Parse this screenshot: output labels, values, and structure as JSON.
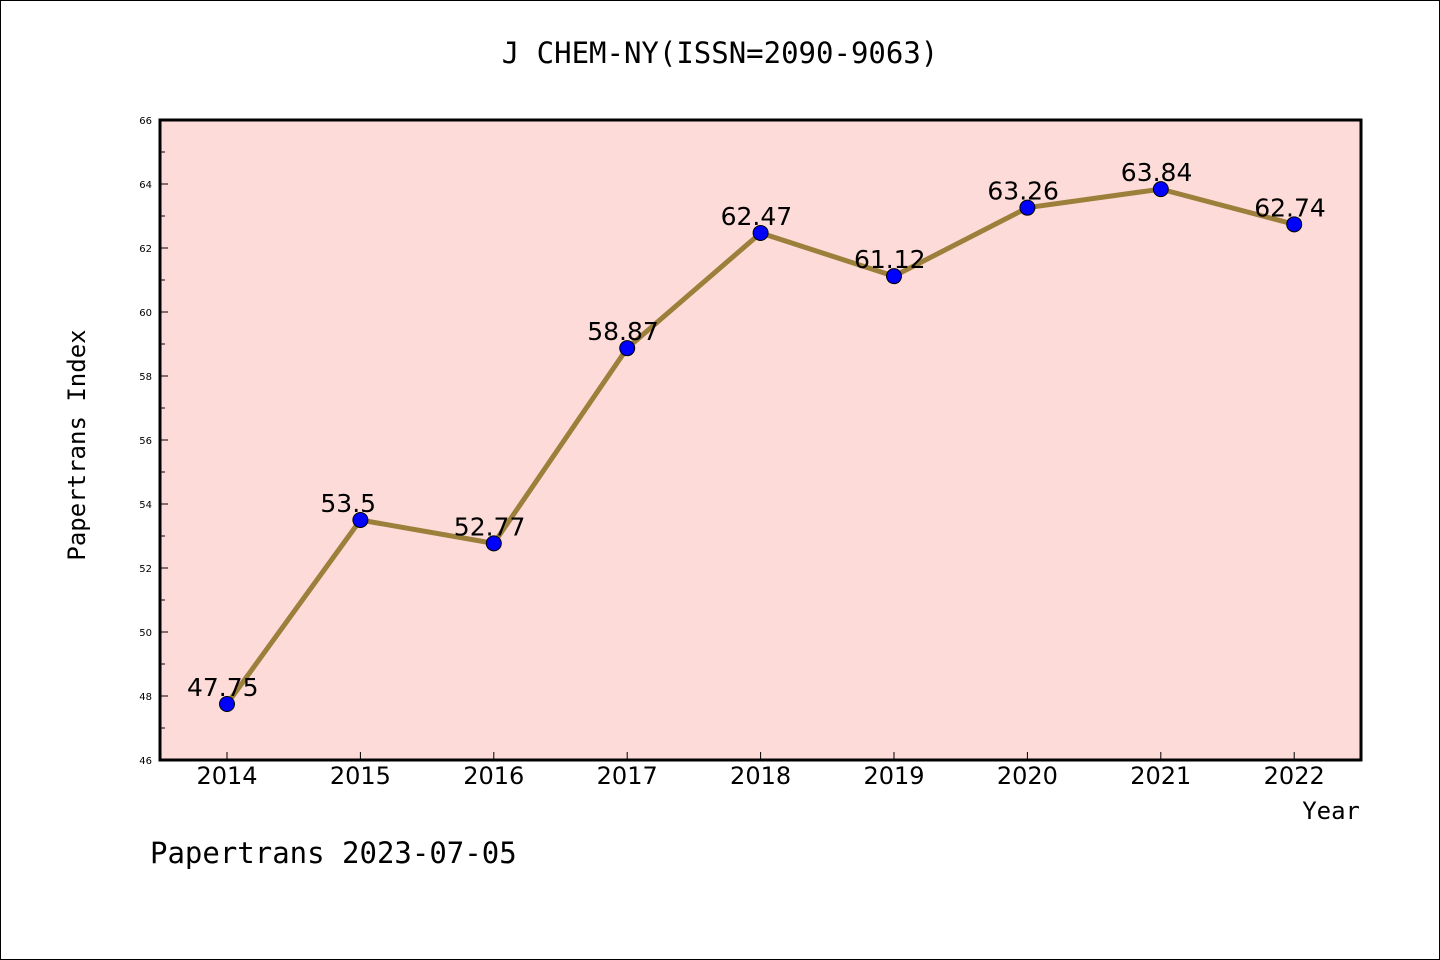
{
  "chart_data": {
    "type": "line",
    "title": "J CHEM-NY(ISSN=2090-9063)",
    "xlabel": "Year",
    "ylabel": "Papertrans Index",
    "categories": [
      "2014",
      "2015",
      "2016",
      "2017",
      "2018",
      "2019",
      "2020",
      "2021",
      "2022"
    ],
    "series": [
      {
        "values": [
          47.75,
          53.5,
          52.77,
          58.87,
          62.47,
          61.12,
          63.26,
          63.84,
          62.74
        ],
        "labels": [
          "47.75",
          "53.5",
          "52.77",
          "58.87",
          "62.47",
          "61.12",
          "63.26",
          "63.84",
          "62.74"
        ]
      }
    ],
    "ylim": [
      46,
      66
    ],
    "yticks": [
      46,
      48,
      50,
      52,
      54,
      56,
      58,
      60,
      62,
      64,
      66
    ],
    "grid": false,
    "colors": {
      "plot_background": "#fddbd8",
      "line": "#9b7f3a",
      "marker": "#0000ff"
    }
  },
  "footer": "Papertrans 2023-07-05"
}
